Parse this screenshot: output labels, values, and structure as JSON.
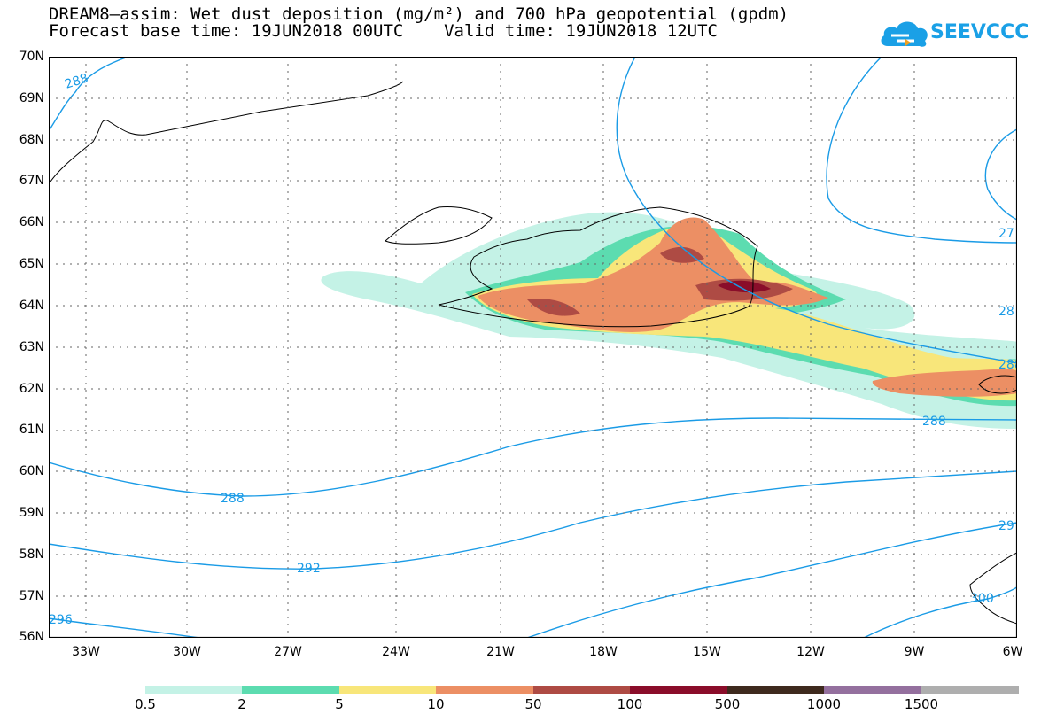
{
  "title_line1": "DREAM8–assim: Wet dust deposition (mg/m²) and 700 hPa geopotential (gpdm)",
  "title_line2": "Forecast base time: 19JUN2018 00UTC    Valid time: 19JUN2018 12UTC",
  "logo_text": "SEEVCCC",
  "lat_labels": [
    "70N",
    "69N",
    "68N",
    "67N",
    "66N",
    "65N",
    "64N",
    "63N",
    "62N",
    "61N",
    "60N",
    "59N",
    "58N",
    "57N",
    "56N"
  ],
  "lon_labels": [
    "33W",
    "30W",
    "27W",
    "24W",
    "21W",
    "18W",
    "15W",
    "12W",
    "9W",
    "6W"
  ],
  "contour_labels": [
    "288",
    "288",
    "288",
    "288",
    "292",
    "296",
    "300",
    "27",
    "28",
    "28",
    "29"
  ],
  "colorbar": {
    "labels": [
      "0.5",
      "2",
      "5",
      "10",
      "50",
      "100",
      "500",
      "1000",
      "1500"
    ],
    "colors": [
      "#c4f2e6",
      "#5cdcb0",
      "#f8e67a",
      "#ec8f64",
      "#ae4b44",
      "#8a0d2a",
      "#3e2a1e",
      "#94709e",
      "#aeaeae"
    ]
  },
  "contour_color": "#1a9be6"
}
